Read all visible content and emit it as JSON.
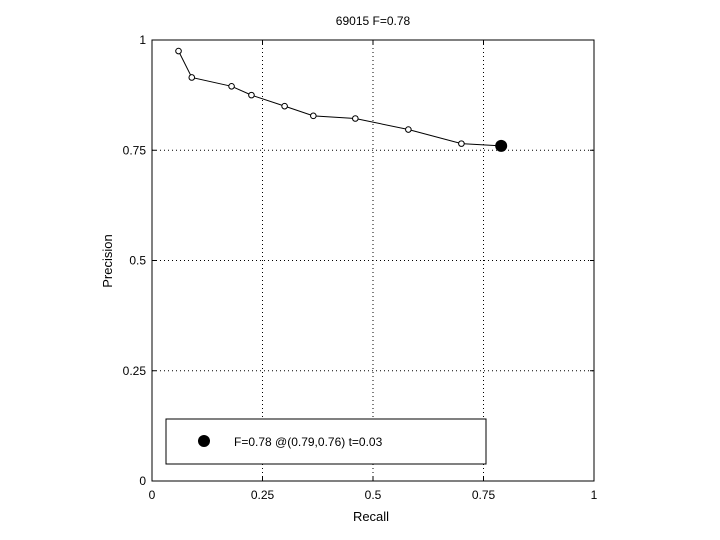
{
  "chart_data": {
    "type": "line",
    "title": "69015 F=0.78",
    "xlabel": "Recall",
    "ylabel": "Precision",
    "xlim": [
      0,
      1
    ],
    "ylim": [
      0,
      1
    ],
    "grid": true,
    "x_ticks": [
      0,
      0.25,
      0.5,
      0.75,
      1
    ],
    "y_ticks": [
      0,
      0.25,
      0.5,
      0.75,
      1
    ],
    "x_tick_labels": [
      "0",
      "0.25",
      "0.5",
      "0.75",
      "1"
    ],
    "y_tick_labels": [
      "0",
      "0.25",
      "0.5",
      "0.75",
      "1"
    ],
    "series": [
      {
        "points": [
          {
            "x": 0.06,
            "y": 0.975
          },
          {
            "x": 0.09,
            "y": 0.915
          },
          {
            "x": 0.18,
            "y": 0.895
          },
          {
            "x": 0.225,
            "y": 0.875
          },
          {
            "x": 0.3,
            "y": 0.85
          },
          {
            "x": 0.365,
            "y": 0.828
          },
          {
            "x": 0.46,
            "y": 0.822
          },
          {
            "x": 0.58,
            "y": 0.797
          },
          {
            "x": 0.7,
            "y": 0.765
          },
          {
            "x": 0.79,
            "y": 0.76
          }
        ]
      }
    ],
    "best_point": {
      "x": 0.79,
      "y": 0.76
    },
    "legend": {
      "position": "bottom-left",
      "text": "F=0.78 @(0.79,0.76) t=0.03"
    }
  }
}
